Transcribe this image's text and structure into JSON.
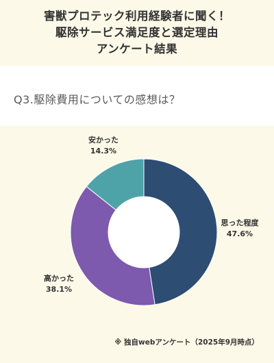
{
  "header": {
    "lines": [
      "害獣プロテック利用経験者に聞く！",
      "駆除サービス満足度と選定理由",
      "アンケート結果"
    ]
  },
  "question": "Q3.駆除費用についての感想は？",
  "footnote": "※ 独自webアンケート（2025年9月時点）",
  "chart_data": {
    "type": "pie",
    "donut": true,
    "slices": [
      {
        "label": "思った程度",
        "value": 47.6,
        "value_label": "47.6%",
        "color": "#2e4d73"
      },
      {
        "label": "高かった",
        "value": 38.1,
        "value_label": "38.1%",
        "color": "#7d5aad"
      },
      {
        "label": "安かった",
        "value": 14.3,
        "value_label": "14.3%",
        "color": "#4ea3a8"
      }
    ]
  }
}
